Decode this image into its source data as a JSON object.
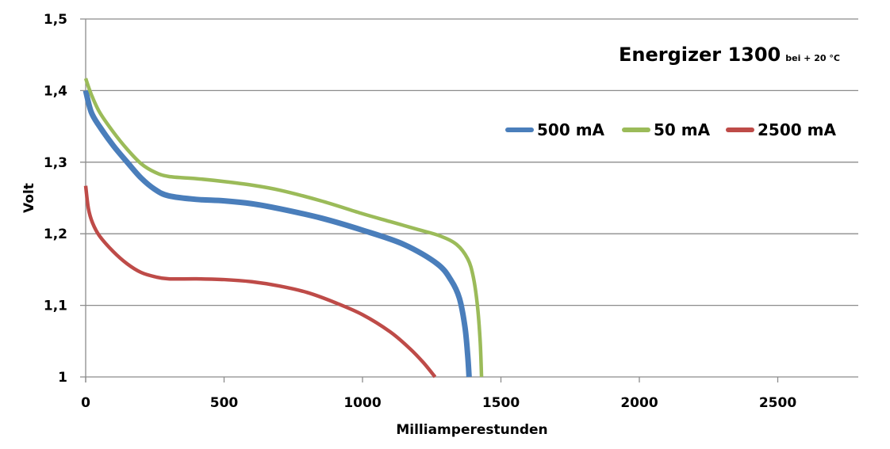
{
  "chart_data": {
    "type": "line",
    "title": "Energizer 1300",
    "subtitle": "bei + 20 °C",
    "xlabel": "Milliamperestunden",
    "ylabel": "Volt",
    "xlim": [
      0,
      2800
    ],
    "ylim": [
      1.0,
      1.5
    ],
    "x_ticks": [
      0,
      500,
      1000,
      1500,
      2000,
      2500
    ],
    "x_tick_labels": [
      "0",
      "500",
      "1000",
      "1500",
      "2000",
      "2500"
    ],
    "y_ticks": [
      1.0,
      1.1,
      1.2,
      1.3,
      1.4,
      1.5
    ],
    "y_tick_labels": [
      "1",
      "1,1",
      "1,2",
      "1,3",
      "1,4",
      "1,5"
    ],
    "grid": "horizontal",
    "legend_position": "top-right",
    "series": [
      {
        "name": "500 mA",
        "color": "#4a7ebb",
        "points": [
          [
            0,
            1.4
          ],
          [
            20,
            1.37
          ],
          [
            50,
            1.35
          ],
          [
            100,
            1.323
          ],
          [
            150,
            1.3
          ],
          [
            200,
            1.278
          ],
          [
            250,
            1.262
          ],
          [
            300,
            1.253
          ],
          [
            400,
            1.248
          ],
          [
            500,
            1.246
          ],
          [
            600,
            1.242
          ],
          [
            700,
            1.235
          ],
          [
            850,
            1.222
          ],
          [
            1000,
            1.205
          ],
          [
            1150,
            1.185
          ],
          [
            1270,
            1.158
          ],
          [
            1320,
            1.135
          ],
          [
            1350,
            1.11
          ],
          [
            1370,
            1.07
          ],
          [
            1380,
            1.03
          ],
          [
            1385,
            1.0
          ]
        ]
      },
      {
        "name": "50 mA",
        "color": "#9bbb59",
        "points": [
          [
            0,
            1.417
          ],
          [
            20,
            1.395
          ],
          [
            50,
            1.37
          ],
          [
            100,
            1.342
          ],
          [
            150,
            1.318
          ],
          [
            200,
            1.298
          ],
          [
            250,
            1.286
          ],
          [
            300,
            1.28
          ],
          [
            400,
            1.277
          ],
          [
            500,
            1.273
          ],
          [
            600,
            1.268
          ],
          [
            700,
            1.261
          ],
          [
            850,
            1.246
          ],
          [
            1000,
            1.228
          ],
          [
            1100,
            1.217
          ],
          [
            1200,
            1.206
          ],
          [
            1280,
            1.197
          ],
          [
            1340,
            1.185
          ],
          [
            1380,
            1.165
          ],
          [
            1400,
            1.14
          ],
          [
            1415,
            1.1
          ],
          [
            1425,
            1.05
          ],
          [
            1430,
            1.0
          ]
        ]
      },
      {
        "name": "2500 mA",
        "color": "#be4b48",
        "points": [
          [
            0,
            1.267
          ],
          [
            10,
            1.235
          ],
          [
            25,
            1.215
          ],
          [
            50,
            1.197
          ],
          [
            100,
            1.175
          ],
          [
            150,
            1.158
          ],
          [
            200,
            1.146
          ],
          [
            250,
            1.14
          ],
          [
            300,
            1.137
          ],
          [
            400,
            1.137
          ],
          [
            500,
            1.136
          ],
          [
            600,
            1.133
          ],
          [
            700,
            1.127
          ],
          [
            800,
            1.118
          ],
          [
            900,
            1.104
          ],
          [
            1000,
            1.087
          ],
          [
            1100,
            1.063
          ],
          [
            1170,
            1.04
          ],
          [
            1220,
            1.02
          ],
          [
            1262,
            1.0
          ]
        ]
      }
    ]
  }
}
